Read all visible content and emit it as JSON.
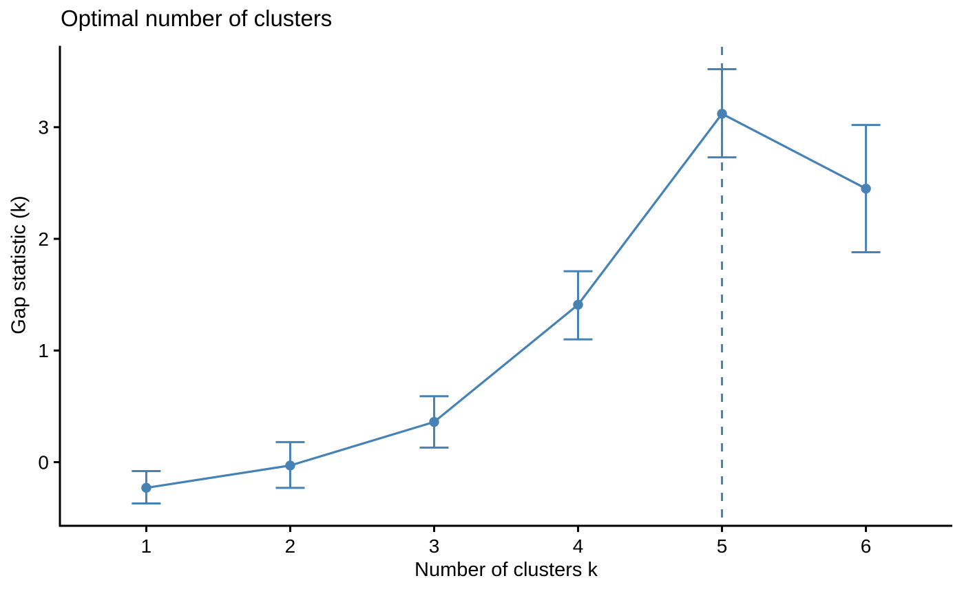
{
  "chart_data": {
    "type": "line",
    "title": "Optimal number of clusters",
    "xlabel": "Number of clusters k",
    "ylabel": "Gap statistic (k)",
    "x": [
      1,
      2,
      3,
      4,
      5,
      6
    ],
    "series": [
      {
        "name": "gap-statistic",
        "values": [
          -0.23,
          -0.03,
          0.36,
          1.41,
          3.12,
          2.45
        ],
        "ymin": [
          -0.37,
          -0.23,
          0.13,
          1.1,
          2.73,
          1.88
        ],
        "ymax": [
          -0.08,
          0.18,
          0.59,
          1.71,
          3.52,
          3.02
        ],
        "color": "#4682B4"
      }
    ],
    "optimal_k": 5,
    "x_ticks": [
      "1",
      "2",
      "3",
      "4",
      "5",
      "6"
    ],
    "y_ticks": [
      "0",
      "1",
      "2",
      "3"
    ],
    "x_tick_values": [
      1,
      2,
      3,
      4,
      5,
      6
    ],
    "y_tick_values": [
      0,
      1,
      2,
      3
    ],
    "xlim": [
      0.4,
      6.6
    ],
    "ylim": [
      -0.57,
      3.72
    ],
    "grid": false,
    "legend": "none",
    "error_bars": true,
    "vline_style": "dashed",
    "axis_color": "#000000",
    "text_color": "#000000",
    "background": "#ffffff"
  }
}
